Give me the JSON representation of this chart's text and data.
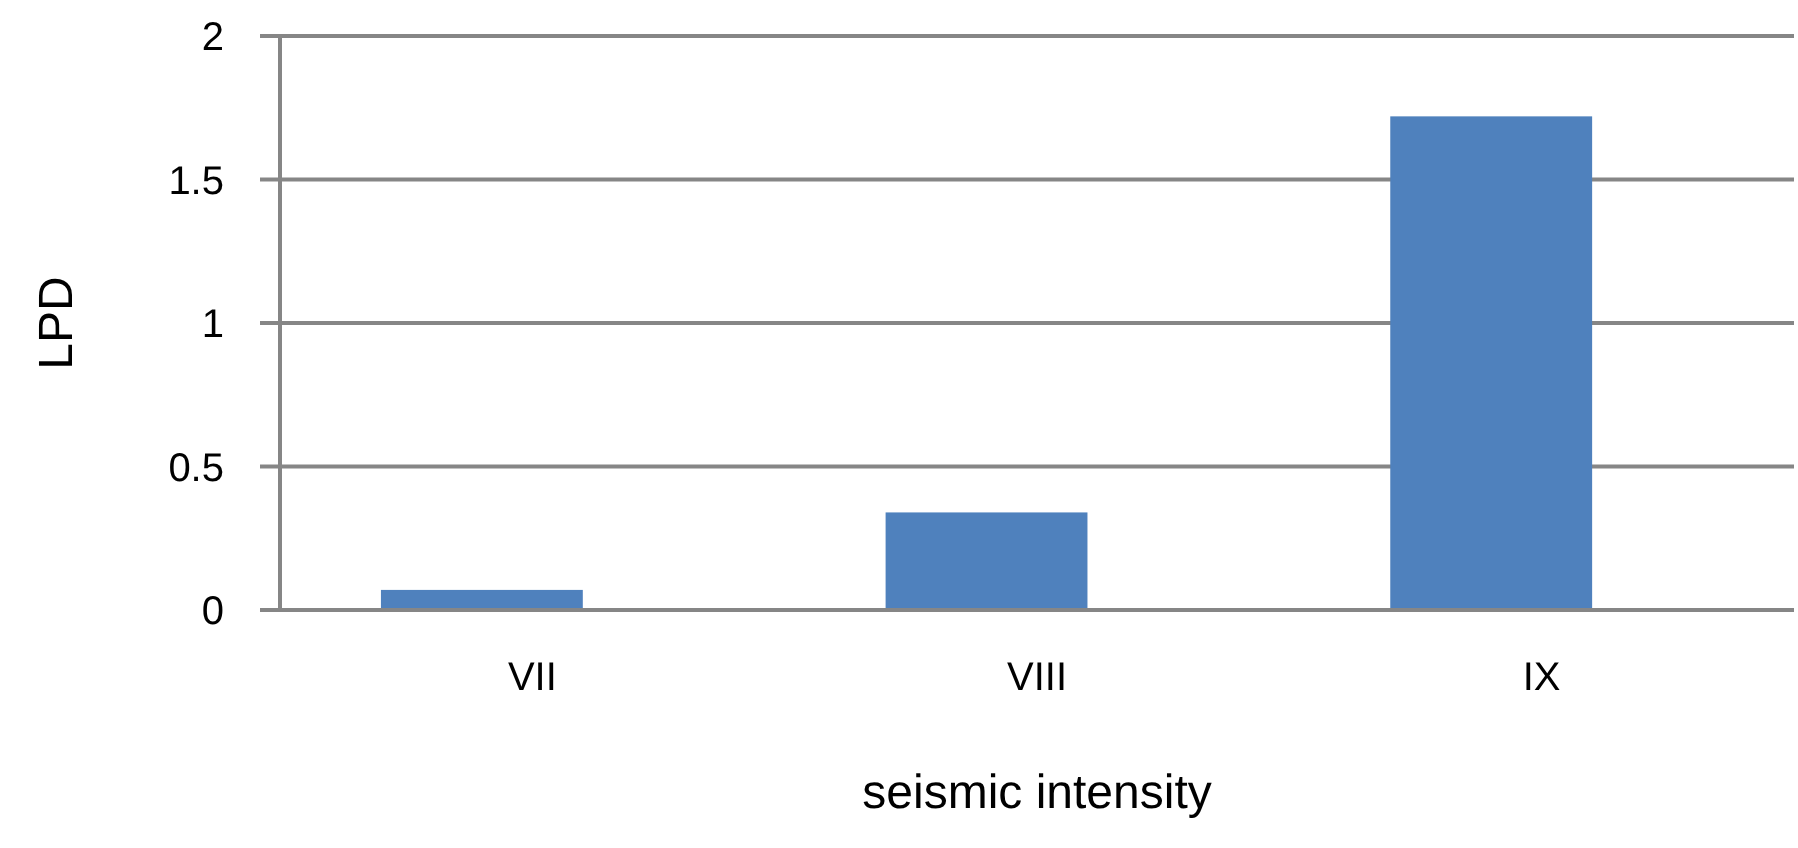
{
  "chart_data": {
    "type": "bar",
    "xlabel": "seismic intensity",
    "ylabel": "LPD",
    "categories": [
      "VII",
      "VIII",
      "IX"
    ],
    "values": [
      0.07,
      0.34,
      1.72
    ],
    "color": "#4f81bd",
    "ylim": [
      0,
      2
    ],
    "yticks": [
      0,
      0.5,
      1,
      1.5,
      2
    ],
    "grid": "y"
  }
}
